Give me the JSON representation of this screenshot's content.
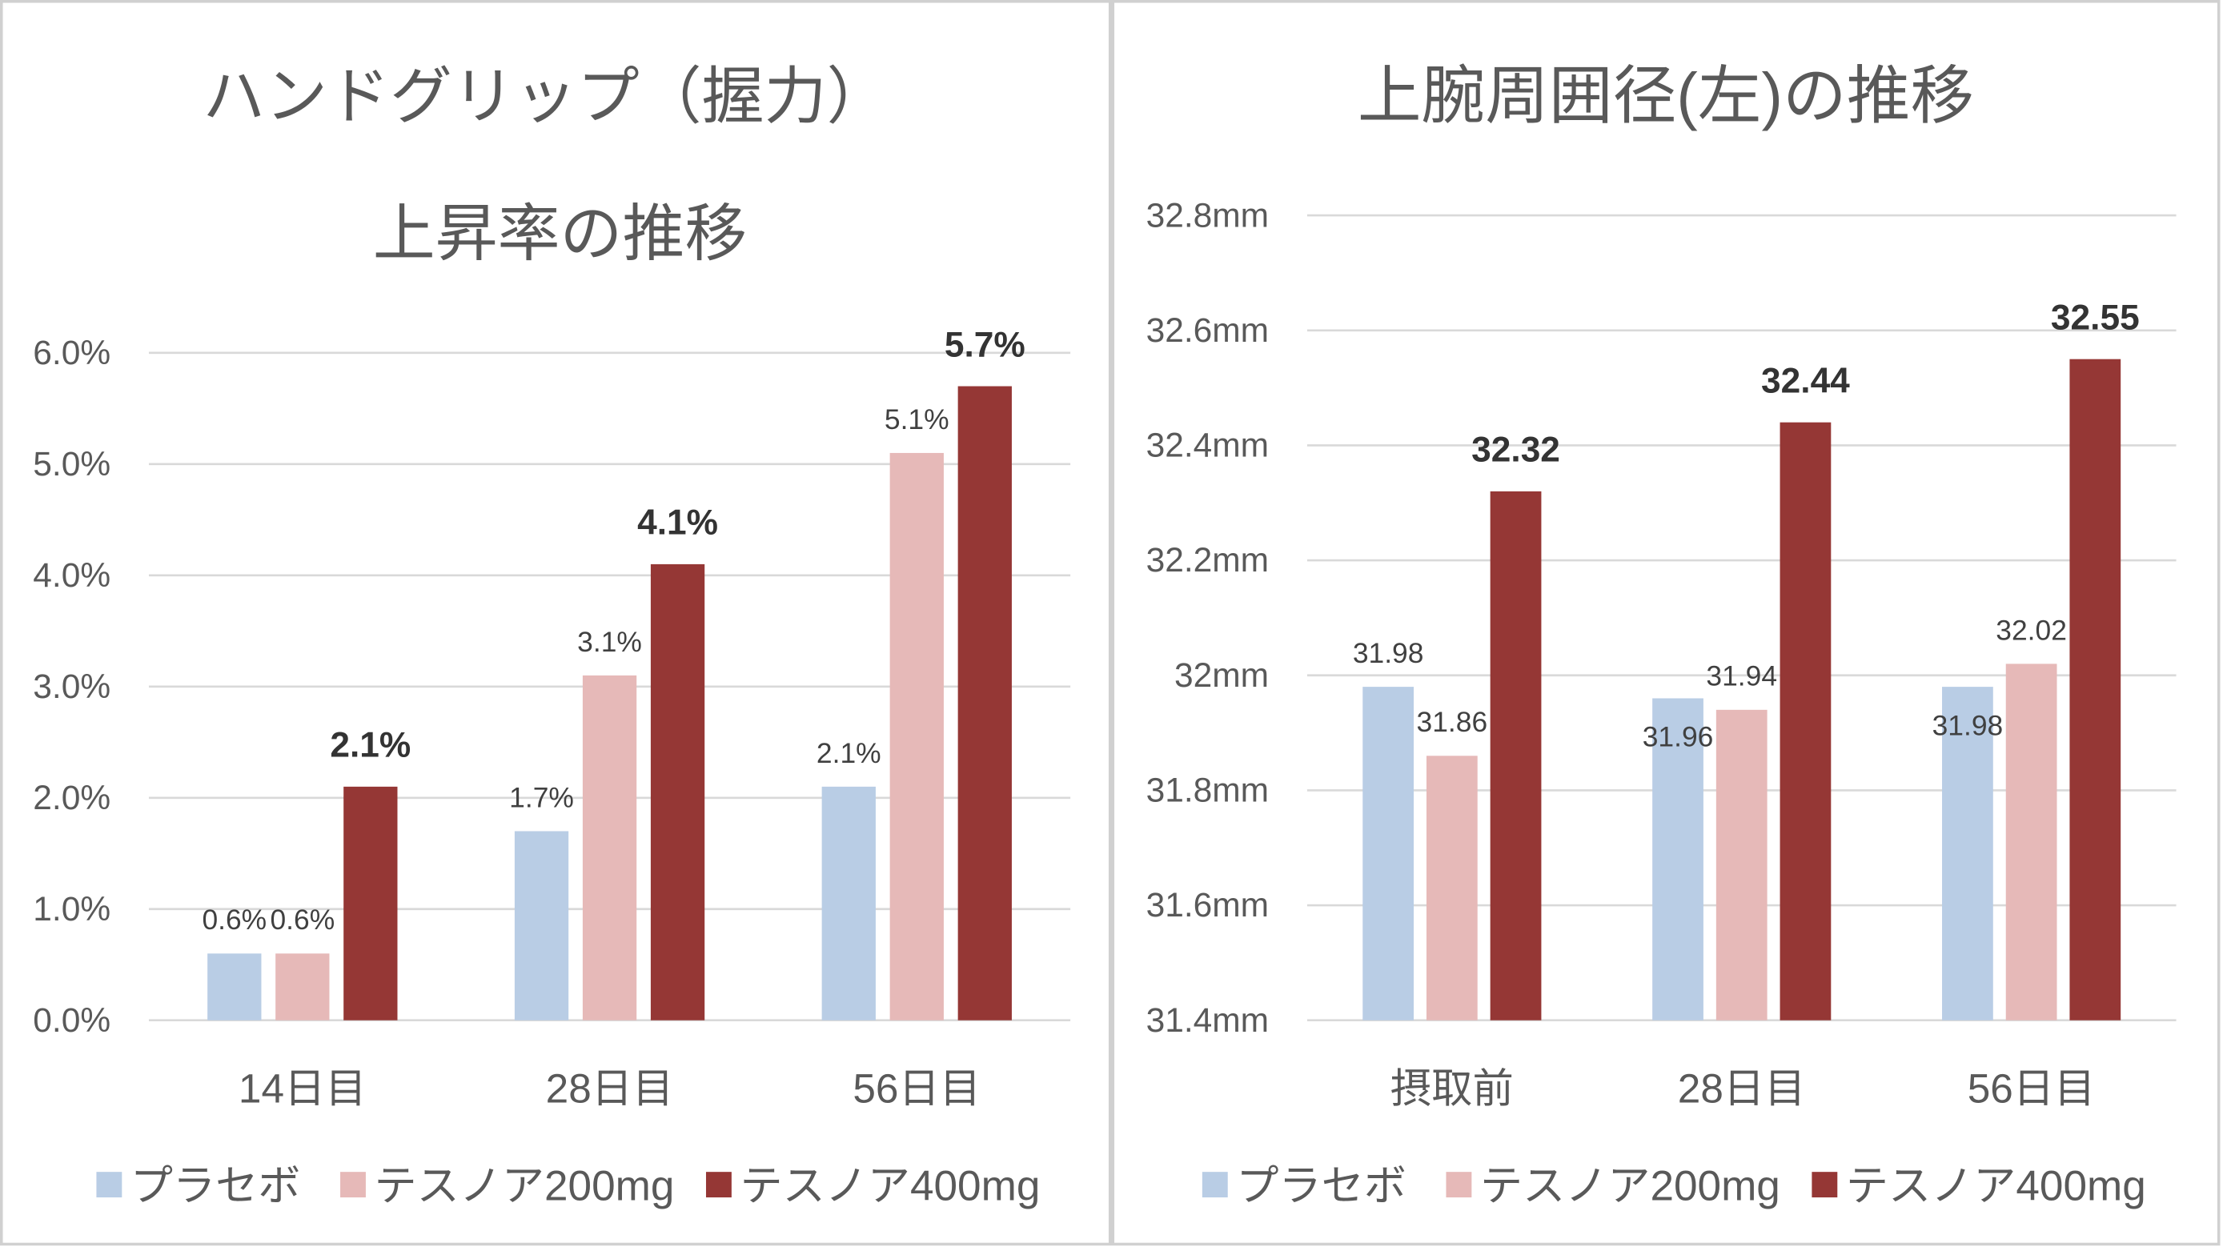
{
  "chart_data": [
    {
      "type": "bar",
      "title_lines": [
        "ハンドグリップ（握力）",
        "上昇率の推移"
      ],
      "categories": [
        "14日目",
        "28日目",
        "56日目"
      ],
      "series": [
        {
          "name": "プラセボ",
          "values": [
            0.6,
            1.7,
            2.1
          ],
          "labels": [
            "0.6%",
            "1.7%",
            "2.1%"
          ],
          "color": "#B9CDE5"
        },
        {
          "name": "テスノア200mg",
          "values": [
            0.6,
            3.1,
            5.1
          ],
          "labels": [
            "0.6%",
            "3.1%",
            "5.1%"
          ],
          "color": "#E6B9B8"
        },
        {
          "name": "テスノア400mg",
          "values": [
            2.1,
            4.1,
            5.7
          ],
          "labels": [
            "2.1%",
            "4.1%",
            "5.7%"
          ],
          "color": "#953735"
        }
      ],
      "ylim": [
        0,
        6
      ],
      "ytick_labels": [
        "0.0%",
        "1.0%",
        "2.0%",
        "3.0%",
        "4.0%",
        "5.0%",
        "6.0%"
      ],
      "grid": true,
      "legend": "bottom"
    },
    {
      "type": "bar",
      "title_lines": [
        "上腕周囲径(左)の推移"
      ],
      "categories": [
        "摂取前",
        "28日目",
        "56日目"
      ],
      "series": [
        {
          "name": "プラセボ",
          "values": [
            31.98,
            31.96,
            31.98
          ],
          "labels": [
            "31.98",
            "31.96",
            "31.98"
          ],
          "color": "#B9CDE5"
        },
        {
          "name": "テスノア200mg",
          "values": [
            31.86,
            31.94,
            32.02
          ],
          "labels": [
            "31.86",
            "31.94",
            "32.02"
          ],
          "color": "#E6B9B8"
        },
        {
          "name": "テスノア400mg",
          "values": [
            32.32,
            32.44,
            32.55
          ],
          "labels": [
            "32.32",
            "32.44",
            "32.55"
          ],
          "color": "#953735"
        }
      ],
      "ylim": [
        31.4,
        32.8
      ],
      "ytick_labels": [
        "31.4mm",
        "31.6mm",
        "31.8mm",
        "32mm",
        "32.2mm",
        "32.4mm",
        "32.6mm",
        "32.8mm"
      ],
      "grid": true,
      "legend": "bottom"
    }
  ]
}
